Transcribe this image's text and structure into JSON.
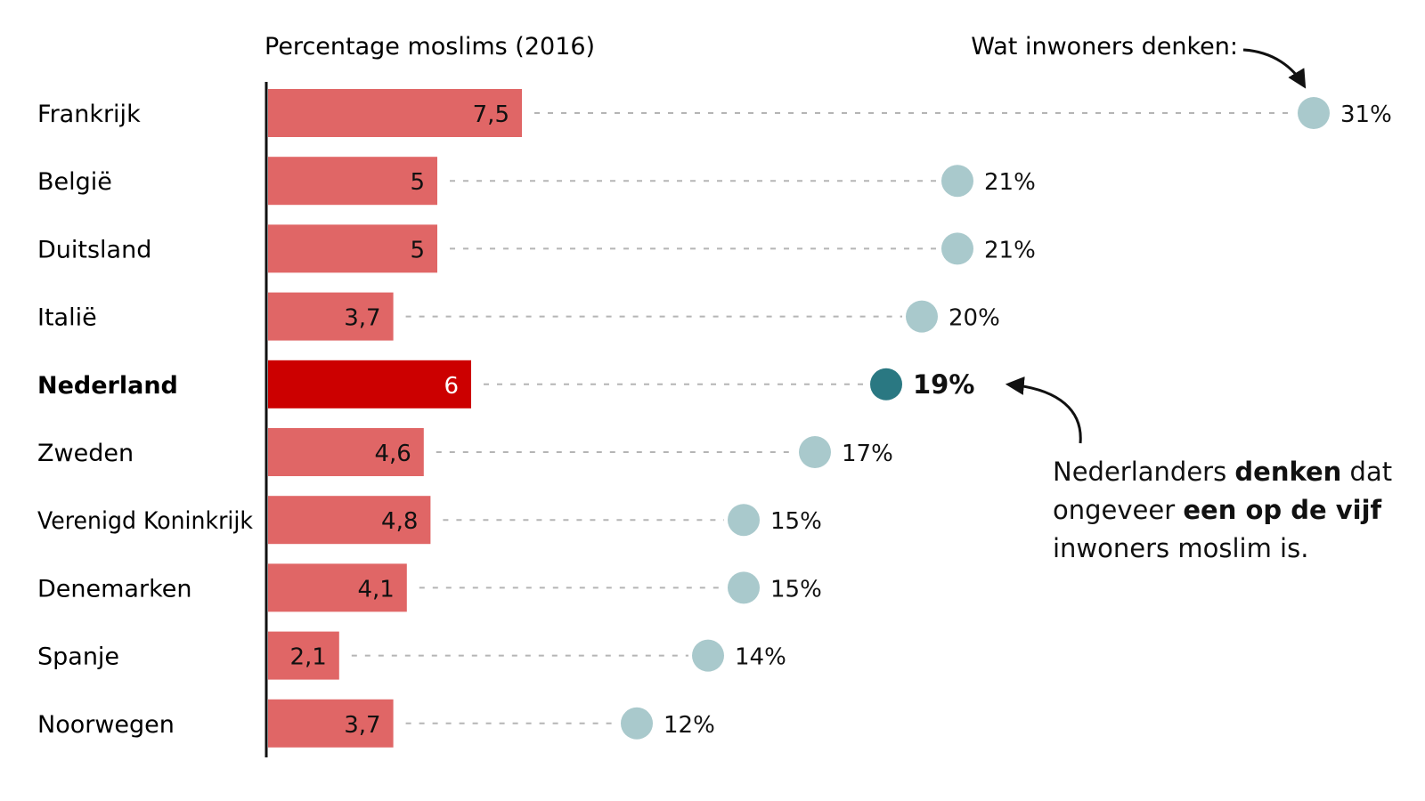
{
  "chart_data": {
    "type": "bar",
    "title": "Percentage moslims (2016)",
    "perception_label": "Wat inwoners denken:",
    "categories": [
      "Frankrijk",
      "België",
      "Duitsland",
      "Italië",
      "Nederland",
      "Zweden",
      "Verenigd Koninkrijk",
      "Denemarken",
      "Spanje",
      "Noorwegen"
    ],
    "highlight": "Nederland",
    "series": [
      {
        "values": [
          7.5,
          5,
          5,
          3.7,
          6,
          4.6,
          4.8,
          4.1,
          2.1,
          3.7
        ],
        "labels": [
          "7,5",
          "5",
          "5",
          "3,7",
          "6",
          "4,6",
          "4,8",
          "4,1",
          "2,1",
          "3,7"
        ]
      },
      {
        "values": [
          31,
          21,
          21,
          20,
          19,
          17,
          15,
          15,
          14,
          12
        ],
        "labels": [
          "31%",
          "21%",
          "21%",
          "20%",
          "19%",
          "17%",
          "15%",
          "15%",
          "14%",
          "12%"
        ]
      }
    ],
    "annotation": {
      "lines": [
        [
          {
            "text": "Nederlanders ",
            "bold": false
          },
          {
            "text": "denken",
            "bold": true
          },
          {
            "text": " dat",
            "bold": false
          }
        ],
        [
          {
            "text": "ongeveer ",
            "bold": false
          },
          {
            "text": "een op de vijf",
            "bold": true
          }
        ],
        [
          {
            "text": "inwoners moslim is.",
            "bold": false
          }
        ]
      ]
    },
    "colors": {
      "bar": "#e06666",
      "bar_highlight": "#cc0000",
      "dot": "#a9c9cc",
      "dot_highlight": "#2a7882",
      "dotted_line": "#b5b5b5",
      "axis": "#111111"
    }
  }
}
